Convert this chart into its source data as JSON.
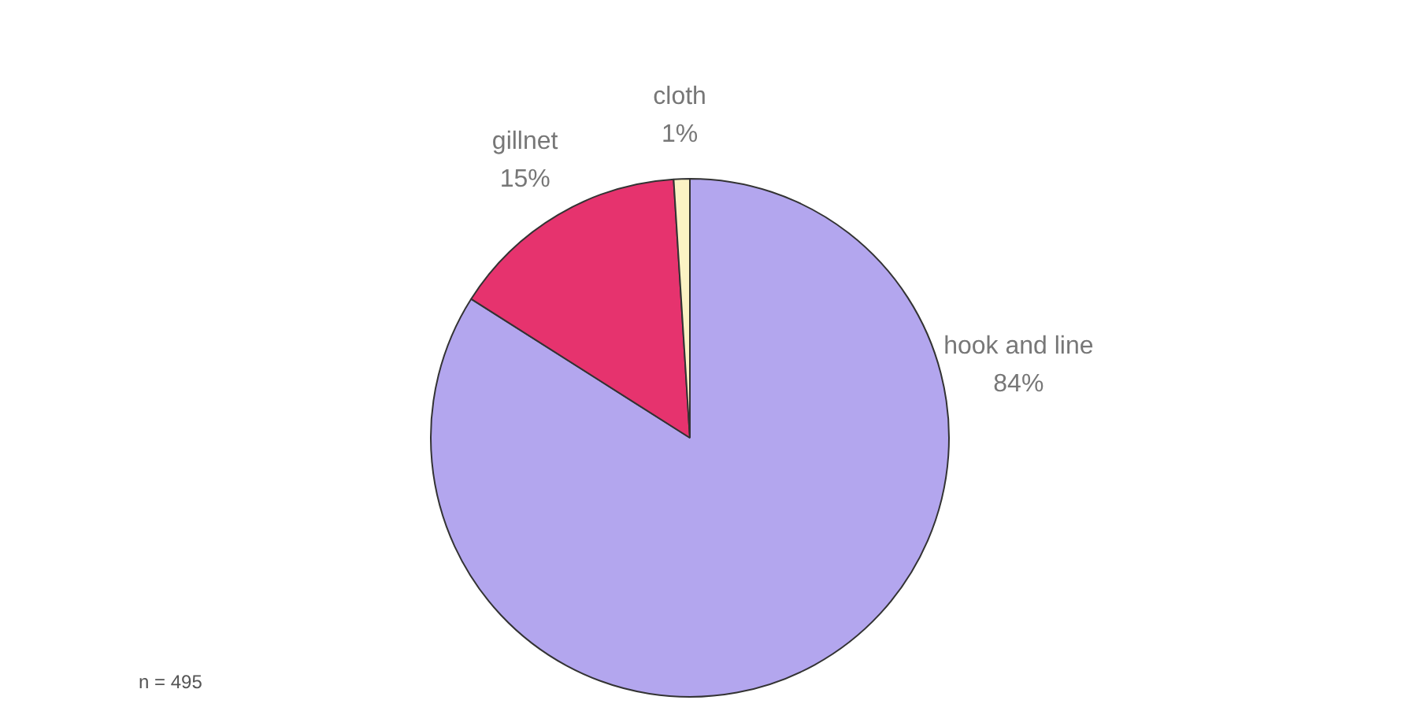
{
  "chart_data": {
    "type": "pie",
    "categories": [
      "hook and line",
      "gillnet",
      "cloth"
    ],
    "values": [
      84,
      15,
      1
    ],
    "colors": [
      "#b3a6ee",
      "#e6336e",
      "#fbf3c4"
    ],
    "value_labels": [
      "84%",
      "15%",
      "1%"
    ],
    "annotations": [
      "n = 495"
    ],
    "legend": false
  }
}
